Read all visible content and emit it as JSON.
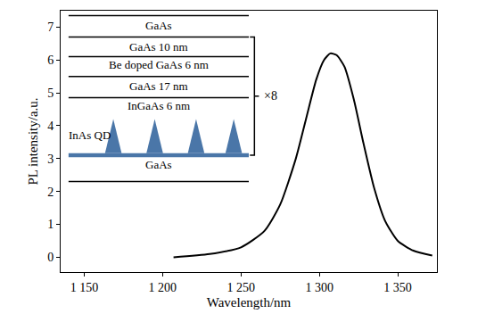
{
  "chart_data": {
    "type": "line",
    "xlabel": "Wavelength/nm",
    "ylabel": "PL intensity/a.u.",
    "x": [
      1207,
      1230,
      1250,
      1265,
      1275,
      1285,
      1292,
      1298,
      1303,
      1307,
      1311,
      1316,
      1322,
      1328,
      1335,
      1342,
      1350,
      1360,
      1372
    ],
    "values": [
      0.0,
      0.1,
      0.3,
      0.8,
      1.6,
      3.0,
      4.3,
      5.4,
      6.0,
      6.2,
      6.15,
      5.8,
      4.8,
      3.5,
      2.1,
      1.1,
      0.5,
      0.2,
      0.05
    ],
    "color": "#000000",
    "xlim": [
      1135,
      1375
    ],
    "ylim": [
      -0.45,
      7.5
    ],
    "xticks": [
      {
        "value": 1150,
        "label": "1 150"
      },
      {
        "value": 1200,
        "label": "1 200"
      },
      {
        "value": 1250,
        "label": "1 250"
      },
      {
        "value": 1300,
        "label": "1 300"
      },
      {
        "value": 1350,
        "label": "1 350"
      }
    ],
    "yticks": [
      0,
      1,
      2,
      3,
      4,
      5,
      6,
      7
    ],
    "grid": false,
    "inset": {
      "layers": [
        "GaAs",
        "GaAs 10 nm",
        "Be doped GaAs 6 nm",
        "GaAs 17 nm",
        "InGaAs 6 nm"
      ],
      "qd_label": "InAs QD",
      "substrate": "GaAs",
      "repeat": "×8"
    }
  }
}
